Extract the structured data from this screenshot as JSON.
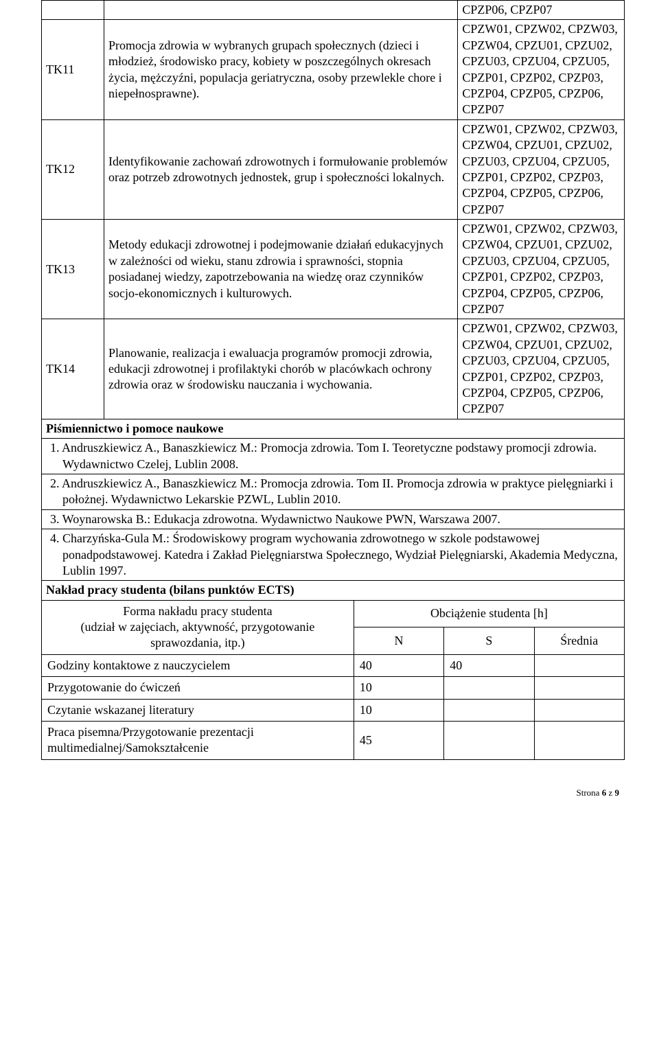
{
  "rows": [
    {
      "id": "",
      "desc": "",
      "codes": "CPZP06, CPZP07"
    },
    {
      "id": "TK11",
      "desc": "Promocja zdrowia w wybranych grupach społecznych (dzieci i młodzież, środowisko pracy, kobiety w poszczególnych okresach życia, mężczyźni, populacja geriatryczna, osoby przewlekle chore i niepełnosprawne).",
      "codes": "CPZW01, CPZW02, CPZW03, CPZW04, CPZU01, CPZU02, CPZU03, CPZU04, CPZU05, CPZP01, CPZP02, CPZP03, CPZP04, CPZP05, CPZP06, CPZP07"
    },
    {
      "id": "TK12",
      "desc": "Identyfikowanie zachowań zdrowotnych i formułowanie problemów oraz potrzeb zdrowotnych jednostek, grup i społeczności lokalnych.",
      "codes": "CPZW01, CPZW02, CPZW03, CPZW04, CPZU01, CPZU02, CPZU03, CPZU04, CPZU05, CPZP01, CPZP02, CPZP03, CPZP04, CPZP05, CPZP06, CPZP07"
    },
    {
      "id": "TK13",
      "desc": "Metody edukacji zdrowotnej i podejmowanie działań edukacyjnych w zależności od wieku, stanu zdrowia i sprawności, stopnia posiadanej wiedzy, zapotrzebowania na wiedzę oraz czynników socjo-ekonomicznych i kulturowych.",
      "codes": "CPZW01, CPZW02, CPZW03, CPZW04, CPZU01, CPZU02, CPZU03, CPZU04, CPZU05, CPZP01, CPZP02, CPZP03, CPZP04, CPZP05, CPZP06, CPZP07"
    },
    {
      "id": "TK14",
      "desc": "Planowanie, realizacja i ewaluacja programów promocji zdrowia, edukacji zdrowotnej i profilaktyki chorób w placówkach ochrony zdrowia oraz w środowisku nauczania i wychowania.",
      "codes": "CPZW01, CPZW02, CPZW03, CPZW04, CPZU01, CPZU02, CPZU03, CPZU04, CPZU05, CPZP01, CPZP02, CPZP03, CPZP04, CPZP05, CPZP06, CPZP07"
    }
  ],
  "bibliography_heading": "Piśmiennictwo i pomoce naukowe",
  "bibliography": [
    "1. Andruszkiewicz A., Banaszkiewicz M.: Promocja zdrowia. Tom I. Teoretyczne podstawy promocji zdrowia. Wydawnictwo Czelej, Lublin 2008.",
    "2. Andruszkiewicz A., Banaszkiewicz M.: Promocja zdrowia. Tom II. Promocja zdrowia w praktyce pielęgniarki i położnej. Wydawnictwo Lekarskie PZWL, Lublin 2010.",
    "3. Woynarowska B.: Edukacja zdrowotna. Wydawnictwo Naukowe PWN, Warszawa 2007.",
    "4. Charzyńska-Gula M.: Środowiskowy program wychowania zdrowotnego w szkole podstawowej ponadpodstawowej. Katedra i Zakład Pielęgniarstwa Społecznego, Wydział Pielęgniarski, Akademia Medyczna, Lublin 1997."
  ],
  "workload_heading": "Nakład pracy studenta (bilans punktów ECTS)",
  "workload_form_label": "Forma nakładu pracy studenta\n(udział w zajęciach, aktywność, przygotowanie sprawozdania, itp.)",
  "workload_obciazenie": "Obciążenie studenta [h]",
  "workload_cols": {
    "n": "N",
    "s": "S",
    "avg": "Średnia"
  },
  "workload_rows": [
    {
      "label": "Godziny kontaktowe z nauczycielem",
      "n": "40",
      "s": "40",
      "avg": ""
    },
    {
      "label": "Przygotowanie do ćwiczeń",
      "n": "10",
      "s": "",
      "avg": ""
    },
    {
      "label": "Czytanie wskazanej literatury",
      "n": "10",
      "s": "",
      "avg": ""
    },
    {
      "label": "Praca pisemna/Przygotowanie prezentacji multimedialnej/Samokształcenie",
      "n": "45",
      "s": "",
      "avg": ""
    }
  ],
  "footer": "Strona 6 z 9"
}
